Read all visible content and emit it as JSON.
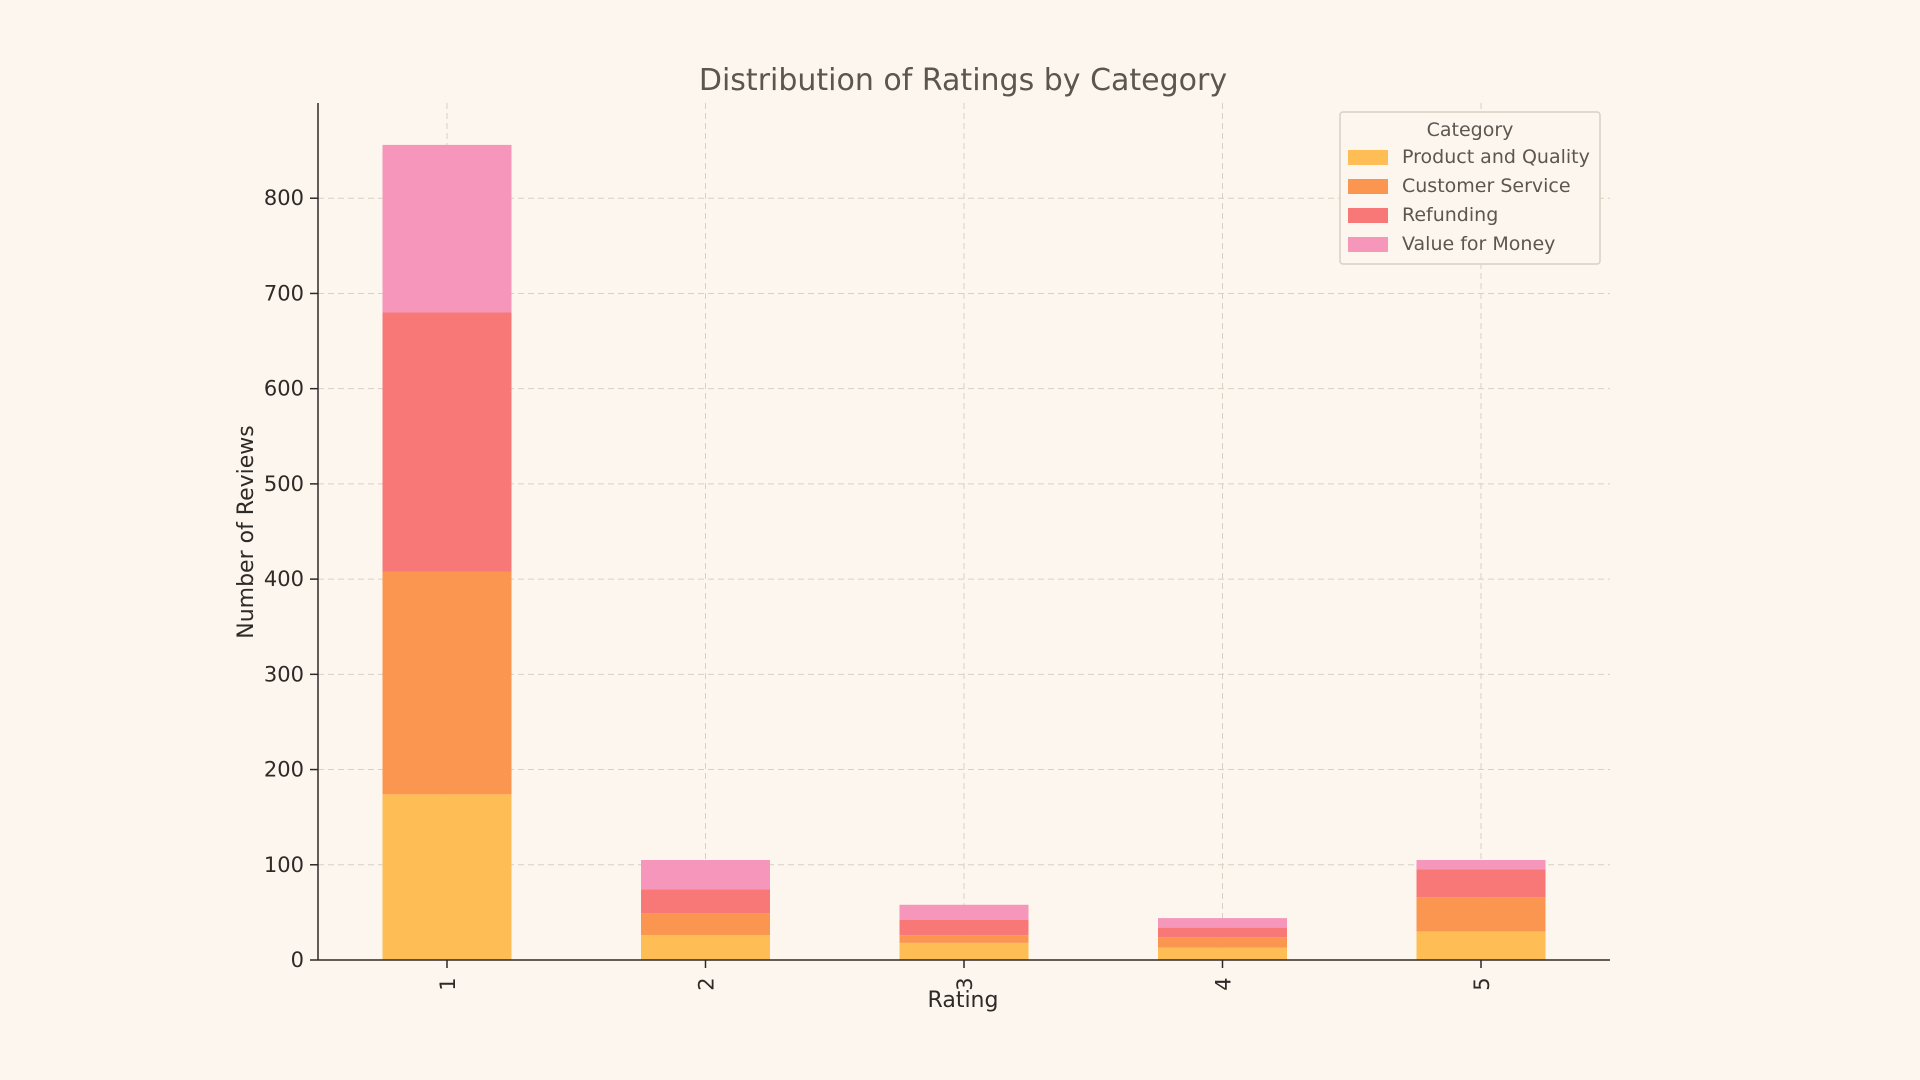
{
  "chart_data": {
    "type": "bar",
    "stacked": true,
    "title": "Distribution of Ratings by Category",
    "xlabel": "Rating",
    "ylabel": "Number of Reviews",
    "categories": [
      "1",
      "2",
      "3",
      "4",
      "5"
    ],
    "ylim": [
      0,
      900
    ],
    "yticks": [
      0,
      100,
      200,
      300,
      400,
      500,
      600,
      700,
      800
    ],
    "grid": true,
    "legend": {
      "title": "Category",
      "placement": "top-right"
    },
    "series": [
      {
        "name": "Product and Quality",
        "color": "#ffbe55",
        "values": [
          174,
          26,
          18,
          13,
          30
        ]
      },
      {
        "name": "Customer Service",
        "color": "#fa9650",
        "values": [
          234,
          23,
          8,
          11,
          36
        ]
      },
      {
        "name": "Refunding",
        "color": "#f87878",
        "values": [
          272,
          25,
          16,
          10,
          29
        ]
      },
      {
        "name": "Value for Money",
        "color": "#f596ba",
        "values": [
          176,
          31,
          16,
          10,
          10
        ]
      }
    ]
  }
}
